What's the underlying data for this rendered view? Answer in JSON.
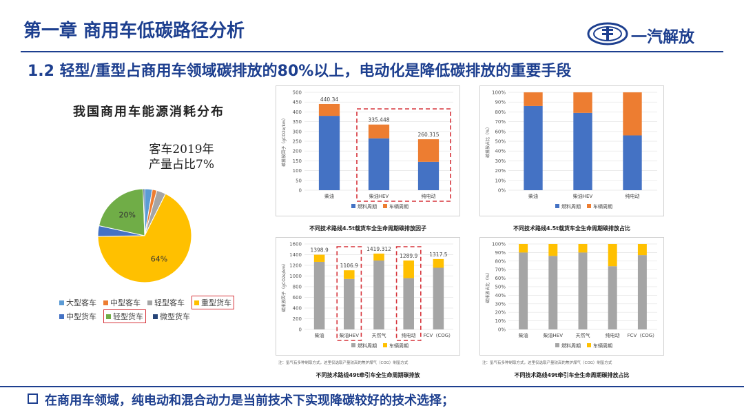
{
  "header": {
    "chapter_title": "第一章 商用车低碳路径分析",
    "logo_text": "一汽解放",
    "subtitle": "1.2 轻型/重型占商用车领域碳排放的80%以上，电动化是降低碳排放的重要手段"
  },
  "pie": {
    "title": "我国商用车能源消耗分布",
    "annotation_line1": "客车2019年",
    "annotation_line2": "产量占比7%",
    "legend": [
      "大型客车",
      "中型客车",
      "轻型客车",
      "重型货车",
      "中型货车",
      "轻型货车",
      "微型货车"
    ]
  },
  "captions": {
    "c1": "不同技术路线4.5t载货车全生命周期碳排放因子",
    "c2": "不同技术路线4.5t载货车全生命周期碳排放占比",
    "c3": "不同技术路线49t牵引车全生命周期碳排放",
    "c4": "不同技术路线49t牵引车全生命周期碳排放占比",
    "note": "注：氢气有多种制取方式，这里仅选取产量较高的焦炉煤气（COG）制氢方式"
  },
  "footer": {
    "bullet": "在商用车领域，纯电动和混合动力是当前技术下实现降碳较好的技术选择；"
  },
  "colors": {
    "blue": "#4472c4",
    "orange": "#ed7d31",
    "gray": "#a5a5a5",
    "yellow": "#ffc000",
    "green": "#70ad47",
    "lightblue": "#5b9bd5",
    "navy": "#264478",
    "highlight": "#d6333a"
  },
  "chart_data": [
    {
      "id": "pie",
      "type": "pie",
      "title": "我国商用车能源消耗分布",
      "labels": [
        "大型客车",
        "中型客车",
        "轻型客车",
        "重型货车",
        "中型货车",
        "轻型货车",
        "微型货车"
      ],
      "values": [
        2.5,
        1.5,
        3,
        64,
        3.5,
        20,
        0.5
      ],
      "colors": [
        "#5b9bd5",
        "#ed7d31",
        "#a5a5a5",
        "#ffc000",
        "#4472c4",
        "#70ad47",
        "#264478"
      ],
      "data_labels": {
        "3": "64%",
        "5": "20%"
      }
    },
    {
      "id": "c1",
      "type": "bar",
      "stacked": true,
      "categories": [
        "柴油",
        "柴油HEV",
        "纯电动"
      ],
      "series": [
        {
          "name": "燃料周期",
          "values": [
            380,
            265,
            145
          ]
        },
        {
          "name": "车辆周期",
          "values": [
            60.34,
            70.448,
            115.315
          ]
        }
      ],
      "totals": [
        "440.34",
        "335.448",
        "260.315"
      ],
      "ylim": [
        0,
        500
      ],
      "yticks": [
        0,
        50,
        100,
        150,
        200,
        250,
        300,
        350,
        400,
        450,
        500
      ],
      "ylabel": "碳排放因子（gCO2e/km）"
    },
    {
      "id": "c2",
      "type": "bar",
      "stacked": true,
      "percent": true,
      "categories": [
        "柴油",
        "柴油HEV",
        "纯电动"
      ],
      "series": [
        {
          "name": "燃料周期",
          "values": [
            86,
            79,
            56
          ]
        },
        {
          "name": "车辆周期",
          "values": [
            14,
            21,
            44
          ]
        }
      ],
      "ylim": [
        0,
        100
      ],
      "yticks": [
        0,
        10,
        20,
        30,
        40,
        50,
        60,
        70,
        80,
        90,
        100
      ],
      "ylabel": "碳排放占比（%）"
    },
    {
      "id": "c3",
      "type": "bar",
      "stacked": true,
      "categories": [
        "柴油",
        "柴油HEV",
        "天然气",
        "纯电动",
        "FCV（COG）"
      ],
      "series": [
        {
          "name": "燃料周期",
          "values": [
            1265,
            945,
            1290,
            960,
            1155
          ]
        },
        {
          "name": "车辆周期",
          "values": [
            133.9,
            161.9,
            129.312,
            329.9,
            162.5
          ]
        }
      ],
      "totals": [
        "1398.9",
        "1106.9",
        "1419.312",
        "1289.9",
        "1317.5"
      ],
      "ylim": [
        0,
        1600
      ],
      "yticks": [
        0,
        200,
        400,
        600,
        800,
        1000,
        1200,
        1400,
        1600
      ],
      "ylabel": "碳排放因子（gCO2e/km）"
    },
    {
      "id": "c4",
      "type": "bar",
      "stacked": true,
      "percent": true,
      "categories": [
        "柴油",
        "柴油HEV",
        "天然气",
        "纯电动",
        "FCV（COG）"
      ],
      "series": [
        {
          "name": "燃料周期",
          "values": [
            90,
            86,
            90,
            74,
            87
          ]
        },
        {
          "name": "车辆周期",
          "values": [
            10,
            14,
            10,
            26,
            13
          ]
        }
      ],
      "ylim": [
        0,
        100
      ],
      "yticks": [
        0,
        10,
        20,
        30,
        40,
        50,
        60,
        70,
        80,
        90,
        100
      ],
      "ylabel": "碳排放占比（%）"
    }
  ]
}
